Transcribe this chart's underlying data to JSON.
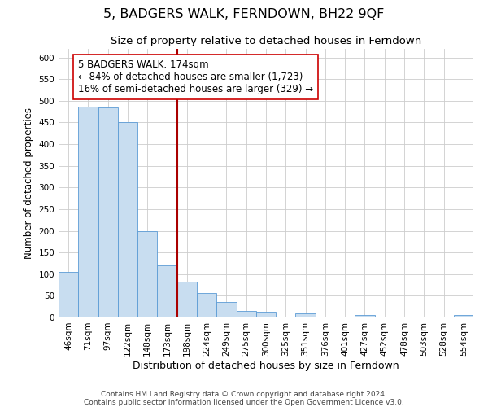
{
  "title": "5, BADGERS WALK, FERNDOWN, BH22 9QF",
  "subtitle": "Size of property relative to detached houses in Ferndown",
  "xlabel": "Distribution of detached houses by size in Ferndown",
  "ylabel": "Number of detached properties",
  "bar_labels": [
    "46sqm",
    "71sqm",
    "97sqm",
    "122sqm",
    "148sqm",
    "173sqm",
    "198sqm",
    "224sqm",
    "249sqm",
    "275sqm",
    "300sqm",
    "325sqm",
    "351sqm",
    "376sqm",
    "401sqm",
    "427sqm",
    "452sqm",
    "478sqm",
    "503sqm",
    "528sqm",
    "554sqm"
  ],
  "bar_values": [
    106,
    487,
    484,
    450,
    200,
    120,
    82,
    57,
    36,
    15,
    14,
    0,
    10,
    0,
    0,
    5,
    0,
    0,
    0,
    0,
    5
  ],
  "bar_color": "#c8ddf0",
  "bar_edge_color": "#5b9bd5",
  "property_line_x": 5.5,
  "property_line_color": "#aa0000",
  "annotation_text": "5 BADGERS WALK: 174sqm\n← 84% of detached houses are smaller (1,723)\n16% of semi-detached houses are larger (329) →",
  "annotation_box_color": "#ffffff",
  "annotation_box_edge_color": "#cc0000",
  "ylim": [
    0,
    620
  ],
  "yticks": [
    0,
    50,
    100,
    150,
    200,
    250,
    300,
    350,
    400,
    450,
    500,
    550,
    600
  ],
  "grid_color": "#cccccc",
  "background_color": "#ffffff",
  "footer_line1": "Contains HM Land Registry data © Crown copyright and database right 2024.",
  "footer_line2": "Contains public sector information licensed under the Open Government Licence v3.0.",
  "title_fontsize": 11.5,
  "subtitle_fontsize": 9.5,
  "xlabel_fontsize": 9,
  "ylabel_fontsize": 8.5,
  "annotation_fontsize": 8.5,
  "footer_fontsize": 6.5,
  "tick_fontsize": 7.5
}
